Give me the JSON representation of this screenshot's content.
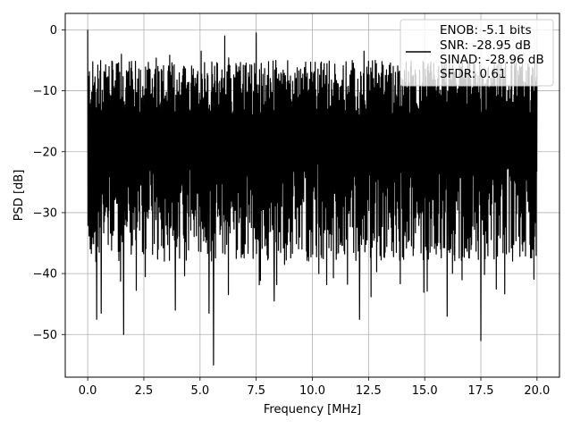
{
  "chart_data": {
    "type": "line",
    "xlabel": "Frequency [MHz]",
    "ylabel": "PSD [dB]",
    "xlim": [
      -1.0,
      21.0
    ],
    "ylim": [
      -57.0,
      2.7
    ],
    "xticks": [
      0.0,
      2.5,
      5.0,
      7.5,
      10.0,
      12.5,
      15.0,
      17.5,
      20.0
    ],
    "xtick_labels": [
      "0.0",
      "2.5",
      "5.0",
      "7.5",
      "10.0",
      "12.5",
      "15.0",
      "17.5",
      "20.0"
    ],
    "yticks": [
      0,
      -10,
      -20,
      -30,
      -40,
      -50
    ],
    "ytick_labels": [
      "0",
      "−10",
      "−20",
      "−30",
      "−40",
      "−50"
    ],
    "grid": true,
    "legend_position": "top-right",
    "line_color": "#000000",
    "series": [
      {
        "legend_lines": [
          "ENOB: -5.1 bits",
          "SNR: -28.95 dB",
          "SINAD: -28.96 dB",
          "SFDR: 0.61"
        ],
        "x_range": [
          0.0,
          20.0
        ],
        "noise_upper_typical": -8.0,
        "noise_lower_typical": -32.0,
        "peaks": [
          {
            "x": 0.0,
            "y": 0.0
          },
          {
            "x": 1.5,
            "y": -4.0
          },
          {
            "x": 5.05,
            "y": -3.5
          },
          {
            "x": 6.1,
            "y": -1.0
          },
          {
            "x": 7.5,
            "y": -0.5
          },
          {
            "x": 12.3,
            "y": -3.5
          }
        ],
        "dips": [
          {
            "x": 0.4,
            "y": -47.5
          },
          {
            "x": 0.6,
            "y": -46.5
          },
          {
            "x": 1.6,
            "y": -50.0
          },
          {
            "x": 3.9,
            "y": -46.0
          },
          {
            "x": 5.4,
            "y": -46.5
          },
          {
            "x": 5.6,
            "y": -55.0
          },
          {
            "x": 8.3,
            "y": -44.5
          },
          {
            "x": 12.1,
            "y": -47.5
          },
          {
            "x": 16.0,
            "y": -47.0
          },
          {
            "x": 17.5,
            "y": -51.0
          }
        ]
      }
    ]
  }
}
